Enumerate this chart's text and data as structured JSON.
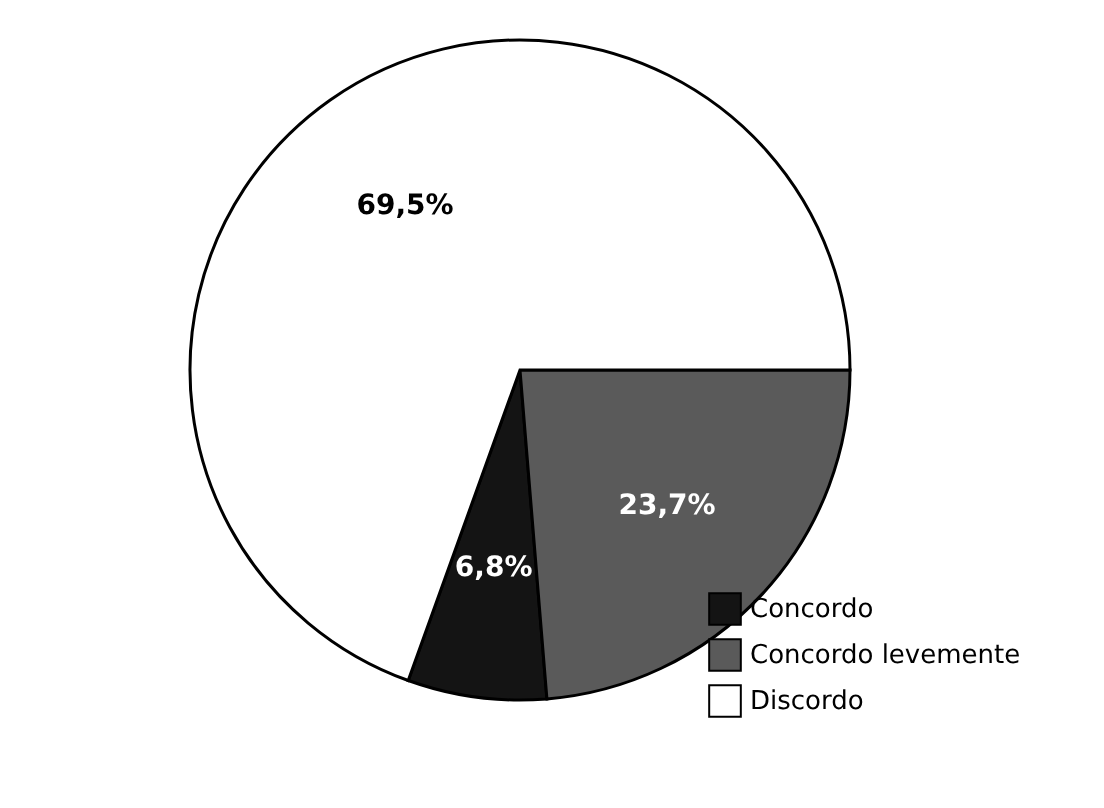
{
  "chart_data": {
    "type": "pie",
    "categories": [
      "Concordo",
      "Concordo levemente",
      "Discordo"
    ],
    "values": [
      6.8,
      23.7,
      69.5
    ],
    "colors": [
      "#141414",
      "#5a5a5a",
      "#ffffff"
    ],
    "data_labels": true,
    "value_labels": [
      "6,8%",
      "23,7%",
      "69,5%"
    ],
    "legend": "bottom right"
  }
}
